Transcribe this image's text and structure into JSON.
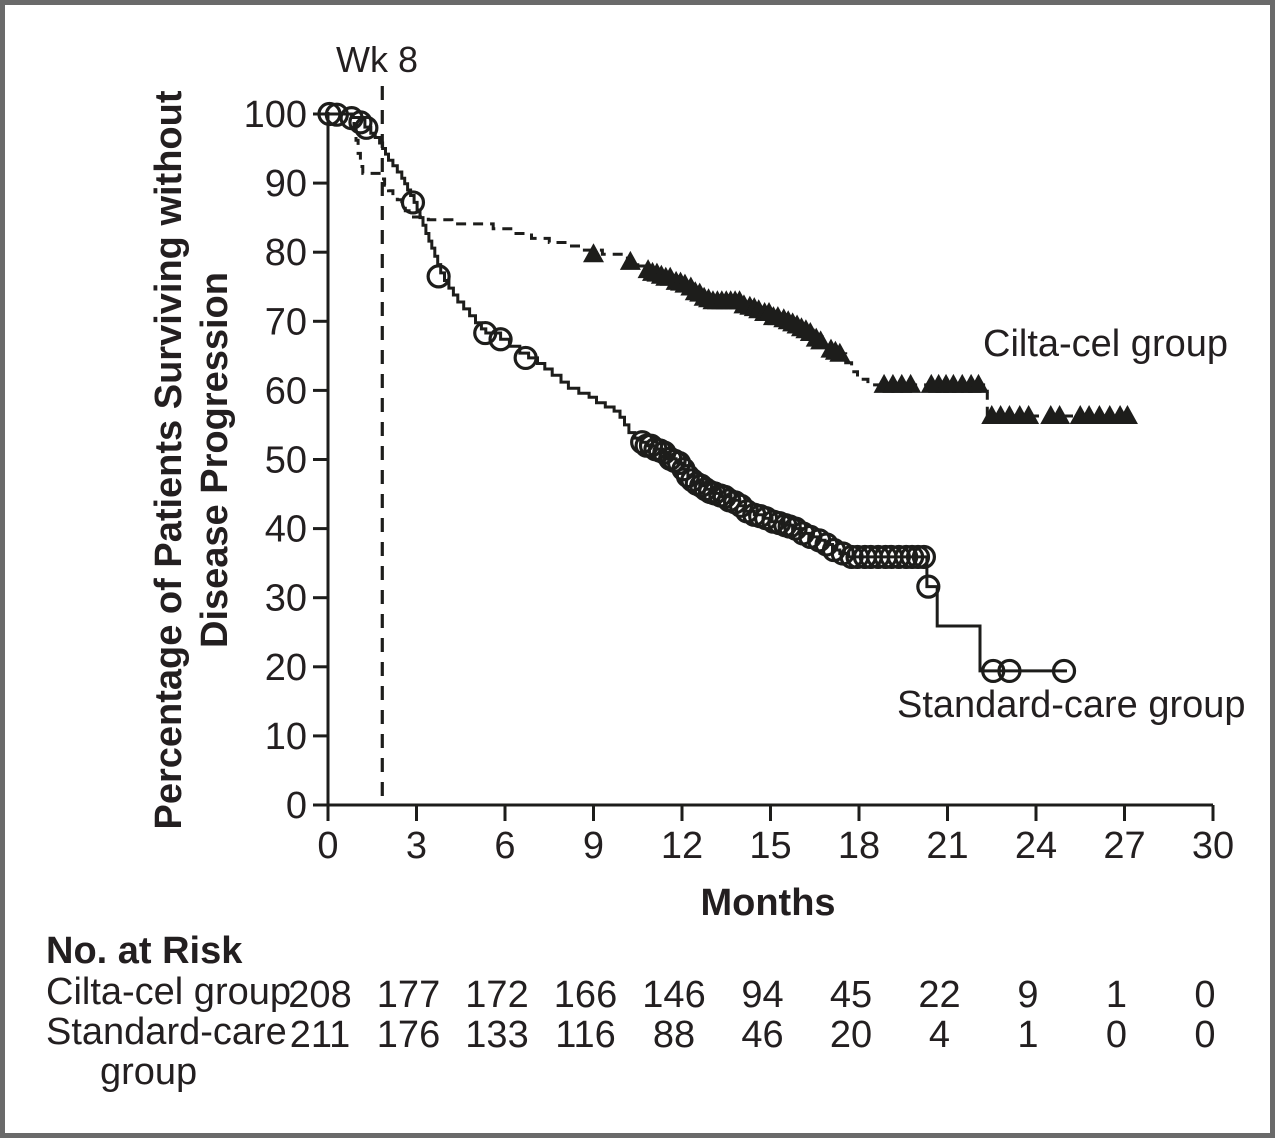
{
  "figure": {
    "background": "#ffffff",
    "border_color": "#6a6a6a",
    "ink_color": "#1d1d1b"
  },
  "labels": {
    "y_axis_line1": "Percentage of Patients Surviving without",
    "y_axis_line2": "Disease Progression",
    "x_axis": "Months",
    "wk8_annotation": "Wk 8"
  },
  "chart_data": {
    "type": "line",
    "subtype": "kaplan-meier-step",
    "title": "",
    "xlabel": "Months",
    "ylabel": "Percentage of Patients Surviving without Disease Progression",
    "xlim": [
      0,
      30
    ],
    "ylim": [
      0,
      100
    ],
    "x_ticks": [
      0,
      3,
      6,
      9,
      12,
      15,
      18,
      21,
      24,
      27,
      30
    ],
    "y_ticks": [
      0,
      10,
      20,
      30,
      40,
      50,
      60,
      70,
      80,
      90,
      100
    ],
    "grid": false,
    "vline": {
      "x": 1.84,
      "label": "Wk 8",
      "style": "dashed"
    },
    "series": [
      {
        "name": "Cilta-cel group",
        "line": "dashed",
        "marker": "filled-triangle",
        "steps": [
          [
            0,
            100
          ],
          [
            0.8,
            99.5
          ],
          [
            0.88,
            98.1
          ],
          [
            0.95,
            96.2
          ],
          [
            1.02,
            94.3
          ],
          [
            1.1,
            92.4
          ],
          [
            1.18,
            91.4
          ],
          [
            1.8,
            90.6
          ],
          [
            1.92,
            89.7
          ],
          [
            2.05,
            88.9
          ],
          [
            2.2,
            88.2
          ],
          [
            2.35,
            87.6
          ],
          [
            2.5,
            87.0
          ],
          [
            2.62,
            86.0
          ],
          [
            2.75,
            85.1
          ],
          [
            3.4,
            84.7
          ],
          [
            4.2,
            84.1
          ],
          [
            5.6,
            83.4
          ],
          [
            6.3,
            82.7
          ],
          [
            6.9,
            82.0
          ],
          [
            7.5,
            81.4
          ],
          [
            8.1,
            80.9
          ],
          [
            8.6,
            80.3
          ],
          [
            9.3,
            79.7
          ],
          [
            10.15,
            78.6
          ],
          [
            10.5,
            78.0
          ],
          [
            10.8,
            77.4
          ],
          [
            11.1,
            76.9
          ],
          [
            11.4,
            76.4
          ],
          [
            11.7,
            75.9
          ],
          [
            12.0,
            75.4
          ],
          [
            12.3,
            74.8
          ],
          [
            12.5,
            74.1
          ],
          [
            12.7,
            73.5
          ],
          [
            13.0,
            72.9
          ],
          [
            14.0,
            72.3
          ],
          [
            14.4,
            71.8
          ],
          [
            14.7,
            71.2
          ],
          [
            15.1,
            70.6
          ],
          [
            15.45,
            70.0
          ],
          [
            15.8,
            69.4
          ],
          [
            16.1,
            68.7
          ],
          [
            16.45,
            67.8
          ],
          [
            16.75,
            66.8
          ],
          [
            17.0,
            65.9
          ],
          [
            17.3,
            65.3
          ],
          [
            17.55,
            64.0
          ],
          [
            17.75,
            62.7
          ],
          [
            17.95,
            61.6
          ],
          [
            18.3,
            60.8
          ],
          [
            22.35,
            56.3
          ],
          [
            27.2,
            56.3
          ]
        ],
        "censor_marks": [
          [
            9.0,
            79.7
          ],
          [
            10.25,
            78.6
          ],
          [
            10.85,
            77.4
          ],
          [
            11.0,
            77.0
          ],
          [
            11.15,
            76.9
          ],
          [
            11.3,
            76.6
          ],
          [
            11.45,
            76.3
          ],
          [
            11.6,
            76.3
          ],
          [
            11.8,
            75.7
          ],
          [
            11.95,
            75.6
          ],
          [
            12.1,
            75.3
          ],
          [
            12.3,
            74.9
          ],
          [
            12.45,
            74.2
          ],
          [
            12.6,
            74.0
          ],
          [
            12.75,
            73.4
          ],
          [
            12.9,
            73.2
          ],
          [
            13.05,
            72.9
          ],
          [
            13.2,
            72.9
          ],
          [
            13.35,
            72.9
          ],
          [
            13.5,
            72.9
          ],
          [
            13.65,
            72.9
          ],
          [
            13.8,
            72.9
          ],
          [
            13.95,
            72.9
          ],
          [
            14.1,
            72.3
          ],
          [
            14.3,
            72.1
          ],
          [
            14.45,
            71.9
          ],
          [
            14.6,
            71.6
          ],
          [
            14.8,
            71.2
          ],
          [
            14.95,
            71.2
          ],
          [
            15.1,
            70.6
          ],
          [
            15.25,
            70.6
          ],
          [
            15.45,
            70.3
          ],
          [
            15.6,
            70.0
          ],
          [
            15.75,
            69.7
          ],
          [
            15.9,
            69.4
          ],
          [
            16.05,
            69.0
          ],
          [
            16.2,
            68.7
          ],
          [
            16.35,
            68.3
          ],
          [
            16.55,
            67.5
          ],
          [
            16.7,
            67.1
          ],
          [
            17.05,
            65.9
          ],
          [
            17.2,
            65.6
          ],
          [
            17.35,
            65.3
          ],
          [
            18.85,
            60.8
          ],
          [
            19.15,
            60.8
          ],
          [
            19.45,
            60.8
          ],
          [
            19.75,
            60.8
          ],
          [
            20.45,
            60.8
          ],
          [
            20.7,
            60.8
          ],
          [
            20.95,
            60.8
          ],
          [
            21.2,
            60.8
          ],
          [
            21.5,
            60.8
          ],
          [
            21.8,
            60.8
          ],
          [
            22.05,
            60.8
          ],
          [
            22.5,
            56.3
          ],
          [
            22.8,
            56.3
          ],
          [
            23.1,
            56.3
          ],
          [
            23.45,
            56.3
          ],
          [
            23.75,
            56.3
          ],
          [
            24.5,
            56.3
          ],
          [
            24.8,
            56.3
          ],
          [
            25.5,
            56.3
          ],
          [
            25.8,
            56.3
          ],
          [
            26.15,
            56.3
          ],
          [
            26.5,
            56.3
          ],
          [
            26.85,
            56.3
          ],
          [
            27.1,
            56.3
          ]
        ]
      },
      {
        "name": "Standard-care group",
        "line": "solid",
        "marker": "open-circle",
        "steps": [
          [
            0,
            100
          ],
          [
            0.85,
            99.5
          ],
          [
            1.25,
            98.1
          ],
          [
            1.45,
            97.2
          ],
          [
            1.6,
            96.6
          ],
          [
            1.75,
            95.8
          ],
          [
            1.85,
            95.0
          ],
          [
            1.95,
            94.2
          ],
          [
            2.05,
            93.3
          ],
          [
            2.2,
            92.5
          ],
          [
            2.35,
            91.6
          ],
          [
            2.5,
            90.7
          ],
          [
            2.6,
            89.9
          ],
          [
            2.7,
            89.0
          ],
          [
            2.8,
            88.2
          ],
          [
            2.92,
            87.2
          ],
          [
            3.02,
            86.1
          ],
          [
            3.12,
            85.0
          ],
          [
            3.22,
            83.9
          ],
          [
            3.32,
            82.7
          ],
          [
            3.42,
            81.6
          ],
          [
            3.52,
            80.6
          ],
          [
            3.62,
            79.4
          ],
          [
            3.72,
            78.2
          ],
          [
            3.82,
            77.0
          ],
          [
            3.95,
            75.9
          ],
          [
            4.1,
            74.8
          ],
          [
            4.25,
            73.8
          ],
          [
            4.4,
            72.8
          ],
          [
            4.6,
            71.8
          ],
          [
            4.8,
            70.8
          ],
          [
            5.0,
            69.8
          ],
          [
            5.2,
            68.9
          ],
          [
            5.35,
            68.3
          ],
          [
            5.85,
            67.4
          ],
          [
            6.15,
            66.4
          ],
          [
            6.5,
            65.4
          ],
          [
            6.8,
            64.7
          ],
          [
            7.1,
            63.9
          ],
          [
            7.35,
            63.1
          ],
          [
            7.6,
            62.2
          ],
          [
            7.9,
            61.2
          ],
          [
            8.15,
            60.3
          ],
          [
            8.5,
            59.6
          ],
          [
            8.85,
            59.0
          ],
          [
            9.1,
            58.2
          ],
          [
            9.4,
            57.6
          ],
          [
            9.7,
            57.0
          ],
          [
            9.9,
            56.1
          ],
          [
            10.05,
            55.0
          ],
          [
            10.2,
            53.9
          ],
          [
            10.4,
            53.1
          ],
          [
            10.6,
            52.5
          ],
          [
            10.85,
            52.0
          ],
          [
            11.1,
            51.5
          ],
          [
            11.35,
            51.0
          ],
          [
            11.55,
            50.1
          ],
          [
            11.8,
            49.5
          ],
          [
            12.0,
            48.6
          ],
          [
            12.2,
            47.6
          ],
          [
            12.4,
            46.7
          ],
          [
            12.6,
            46.2
          ],
          [
            12.8,
            45.7
          ],
          [
            13.05,
            45.1
          ],
          [
            13.35,
            44.6
          ],
          [
            13.65,
            44.1
          ],
          [
            13.95,
            43.3
          ],
          [
            14.15,
            42.5
          ],
          [
            14.45,
            42.0
          ],
          [
            14.75,
            41.5
          ],
          [
            15.05,
            41.0
          ],
          [
            15.4,
            40.5
          ],
          [
            15.75,
            40.0
          ],
          [
            16.05,
            39.3
          ],
          [
            16.3,
            38.8
          ],
          [
            16.6,
            38.3
          ],
          [
            16.85,
            37.7
          ],
          [
            17.1,
            36.9
          ],
          [
            17.35,
            36.4
          ],
          [
            17.65,
            35.9
          ],
          [
            20.3,
            31.6
          ],
          [
            20.65,
            25.9
          ],
          [
            22.1,
            19.4
          ],
          [
            25.05,
            19.4
          ]
        ],
        "censor_marks": [
          [
            0.05,
            100
          ],
          [
            0.3,
            99.9
          ],
          [
            0.8,
            99.4
          ],
          [
            1.1,
            98.8
          ],
          [
            1.3,
            98.0
          ],
          [
            2.88,
            87.2
          ],
          [
            3.75,
            76.5
          ],
          [
            5.33,
            68.3
          ],
          [
            5.85,
            67.4
          ],
          [
            6.7,
            64.7
          ],
          [
            10.65,
            52.5
          ],
          [
            10.8,
            52.0
          ],
          [
            10.95,
            52.0
          ],
          [
            11.1,
            51.5
          ],
          [
            11.25,
            51.3
          ],
          [
            11.4,
            51.0
          ],
          [
            11.6,
            50.1
          ],
          [
            11.75,
            49.8
          ],
          [
            11.9,
            49.5
          ],
          [
            12.05,
            48.6
          ],
          [
            12.2,
            47.6
          ],
          [
            12.35,
            47.0
          ],
          [
            12.5,
            46.5
          ],
          [
            12.65,
            46.2
          ],
          [
            12.8,
            45.7
          ],
          [
            12.95,
            45.3
          ],
          [
            13.1,
            45.1
          ],
          [
            13.3,
            44.8
          ],
          [
            13.45,
            44.6
          ],
          [
            13.6,
            44.1
          ],
          [
            13.8,
            43.8
          ],
          [
            14.0,
            43.3
          ],
          [
            14.2,
            42.5
          ],
          [
            14.45,
            42.0
          ],
          [
            14.65,
            41.8
          ],
          [
            14.85,
            41.5
          ],
          [
            15.1,
            41.0
          ],
          [
            15.3,
            40.8
          ],
          [
            15.5,
            40.5
          ],
          [
            15.65,
            40.3
          ],
          [
            15.85,
            40.0
          ],
          [
            16.1,
            39.3
          ],
          [
            16.35,
            38.8
          ],
          [
            16.65,
            38.3
          ],
          [
            16.9,
            37.7
          ],
          [
            17.15,
            36.9
          ],
          [
            17.45,
            36.4
          ],
          [
            17.75,
            35.9
          ],
          [
            17.95,
            35.9
          ],
          [
            18.2,
            35.9
          ],
          [
            18.4,
            35.9
          ],
          [
            18.65,
            35.9
          ],
          [
            18.9,
            35.9
          ],
          [
            19.1,
            35.9
          ],
          [
            19.35,
            35.9
          ],
          [
            19.6,
            35.9
          ],
          [
            19.8,
            35.9
          ],
          [
            20.0,
            35.9
          ],
          [
            20.2,
            35.9
          ],
          [
            20.35,
            31.6
          ],
          [
            22.55,
            19.4
          ],
          [
            23.1,
            19.4
          ],
          [
            24.95,
            19.4
          ]
        ]
      }
    ],
    "risk_table": {
      "title": "No. at Risk",
      "time_points": [
        0,
        3,
        6,
        9,
        12,
        15,
        18,
        21,
        24,
        27,
        30
      ],
      "rows": [
        {
          "label": "Cilta-cel group",
          "label_lines": [
            "Cilta-cel group"
          ],
          "values": [
            208,
            177,
            172,
            166,
            146,
            94,
            45,
            22,
            9,
            1,
            0
          ]
        },
        {
          "label": "Standard-care group",
          "label_lines": [
            "Standard-care",
            "group"
          ],
          "values": [
            211,
            176,
            133,
            116,
            88,
            46,
            20,
            4,
            1,
            0,
            0
          ]
        }
      ]
    }
  }
}
